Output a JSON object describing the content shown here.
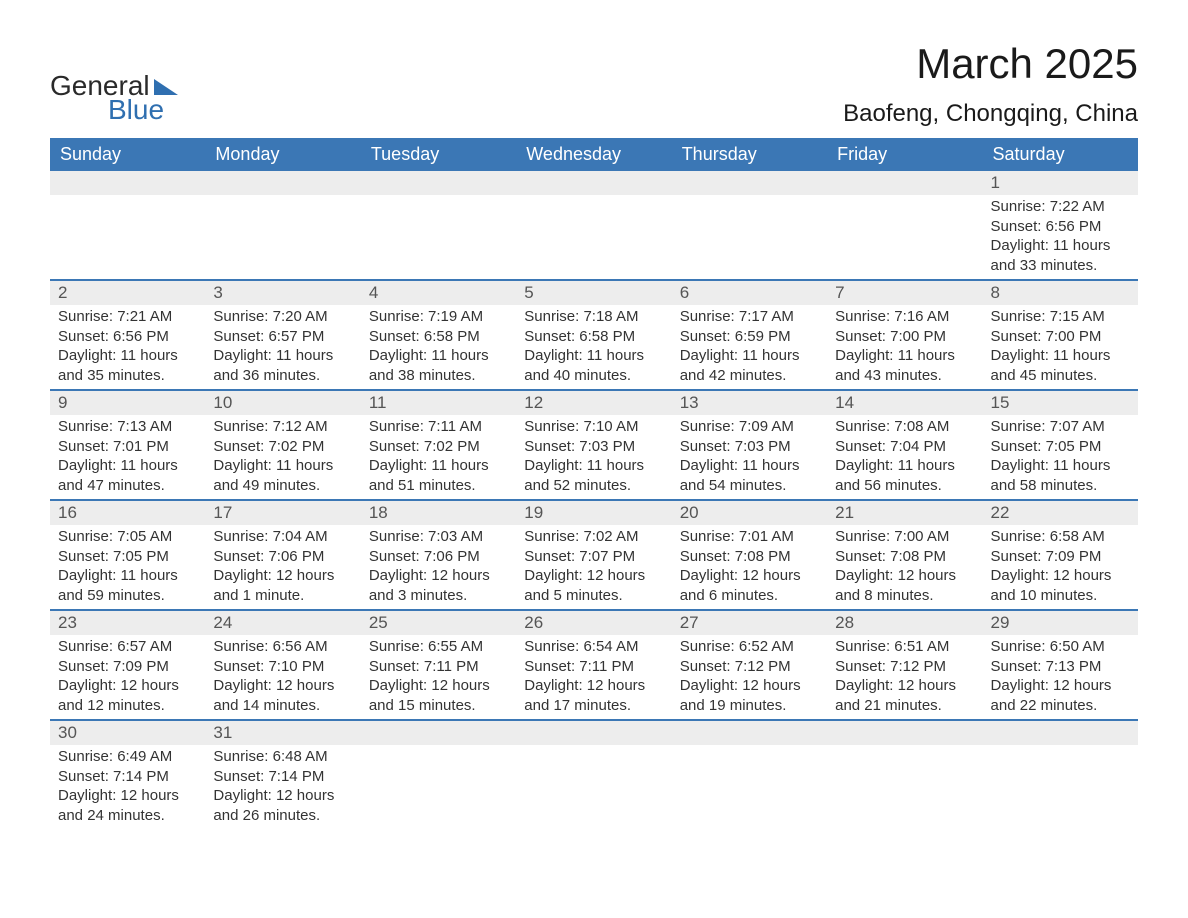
{
  "brand": {
    "name_part1": "General",
    "name_part2": "Blue"
  },
  "title": "March 2025",
  "location": "Baofeng, Chongqing, China",
  "colors": {
    "header_bg": "#3b77b5",
    "header_text": "#ffffff",
    "daynum_bg": "#ededed",
    "border": "#3b77b5",
    "body_text": "#333333",
    "logo_blue": "#2f6fb0"
  },
  "weekdays": [
    "Sunday",
    "Monday",
    "Tuesday",
    "Wednesday",
    "Thursday",
    "Friday",
    "Saturday"
  ],
  "start_weekday_index": 6,
  "days": [
    {
      "n": 1,
      "sunrise": "7:22 AM",
      "sunset": "6:56 PM",
      "daylight": "11 hours and 33 minutes."
    },
    {
      "n": 2,
      "sunrise": "7:21 AM",
      "sunset": "6:56 PM",
      "daylight": "11 hours and 35 minutes."
    },
    {
      "n": 3,
      "sunrise": "7:20 AM",
      "sunset": "6:57 PM",
      "daylight": "11 hours and 36 minutes."
    },
    {
      "n": 4,
      "sunrise": "7:19 AM",
      "sunset": "6:58 PM",
      "daylight": "11 hours and 38 minutes."
    },
    {
      "n": 5,
      "sunrise": "7:18 AM",
      "sunset": "6:58 PM",
      "daylight": "11 hours and 40 minutes."
    },
    {
      "n": 6,
      "sunrise": "7:17 AM",
      "sunset": "6:59 PM",
      "daylight": "11 hours and 42 minutes."
    },
    {
      "n": 7,
      "sunrise": "7:16 AM",
      "sunset": "7:00 PM",
      "daylight": "11 hours and 43 minutes."
    },
    {
      "n": 8,
      "sunrise": "7:15 AM",
      "sunset": "7:00 PM",
      "daylight": "11 hours and 45 minutes."
    },
    {
      "n": 9,
      "sunrise": "7:13 AM",
      "sunset": "7:01 PM",
      "daylight": "11 hours and 47 minutes."
    },
    {
      "n": 10,
      "sunrise": "7:12 AM",
      "sunset": "7:02 PM",
      "daylight": "11 hours and 49 minutes."
    },
    {
      "n": 11,
      "sunrise": "7:11 AM",
      "sunset": "7:02 PM",
      "daylight": "11 hours and 51 minutes."
    },
    {
      "n": 12,
      "sunrise": "7:10 AM",
      "sunset": "7:03 PM",
      "daylight": "11 hours and 52 minutes."
    },
    {
      "n": 13,
      "sunrise": "7:09 AM",
      "sunset": "7:03 PM",
      "daylight": "11 hours and 54 minutes."
    },
    {
      "n": 14,
      "sunrise": "7:08 AM",
      "sunset": "7:04 PM",
      "daylight": "11 hours and 56 minutes."
    },
    {
      "n": 15,
      "sunrise": "7:07 AM",
      "sunset": "7:05 PM",
      "daylight": "11 hours and 58 minutes."
    },
    {
      "n": 16,
      "sunrise": "7:05 AM",
      "sunset": "7:05 PM",
      "daylight": "11 hours and 59 minutes."
    },
    {
      "n": 17,
      "sunrise": "7:04 AM",
      "sunset": "7:06 PM",
      "daylight": "12 hours and 1 minute."
    },
    {
      "n": 18,
      "sunrise": "7:03 AM",
      "sunset": "7:06 PM",
      "daylight": "12 hours and 3 minutes."
    },
    {
      "n": 19,
      "sunrise": "7:02 AM",
      "sunset": "7:07 PM",
      "daylight": "12 hours and 5 minutes."
    },
    {
      "n": 20,
      "sunrise": "7:01 AM",
      "sunset": "7:08 PM",
      "daylight": "12 hours and 6 minutes."
    },
    {
      "n": 21,
      "sunrise": "7:00 AM",
      "sunset": "7:08 PM",
      "daylight": "12 hours and 8 minutes."
    },
    {
      "n": 22,
      "sunrise": "6:58 AM",
      "sunset": "7:09 PM",
      "daylight": "12 hours and 10 minutes."
    },
    {
      "n": 23,
      "sunrise": "6:57 AM",
      "sunset": "7:09 PM",
      "daylight": "12 hours and 12 minutes."
    },
    {
      "n": 24,
      "sunrise": "6:56 AM",
      "sunset": "7:10 PM",
      "daylight": "12 hours and 14 minutes."
    },
    {
      "n": 25,
      "sunrise": "6:55 AM",
      "sunset": "7:11 PM",
      "daylight": "12 hours and 15 minutes."
    },
    {
      "n": 26,
      "sunrise": "6:54 AM",
      "sunset": "7:11 PM",
      "daylight": "12 hours and 17 minutes."
    },
    {
      "n": 27,
      "sunrise": "6:52 AM",
      "sunset": "7:12 PM",
      "daylight": "12 hours and 19 minutes."
    },
    {
      "n": 28,
      "sunrise": "6:51 AM",
      "sunset": "7:12 PM",
      "daylight": "12 hours and 21 minutes."
    },
    {
      "n": 29,
      "sunrise": "6:50 AM",
      "sunset": "7:13 PM",
      "daylight": "12 hours and 22 minutes."
    },
    {
      "n": 30,
      "sunrise": "6:49 AM",
      "sunset": "7:14 PM",
      "daylight": "12 hours and 24 minutes."
    },
    {
      "n": 31,
      "sunrise": "6:48 AM",
      "sunset": "7:14 PM",
      "daylight": "12 hours and 26 minutes."
    }
  ],
  "labels": {
    "sunrise": "Sunrise:",
    "sunset": "Sunset:",
    "daylight": "Daylight:"
  }
}
